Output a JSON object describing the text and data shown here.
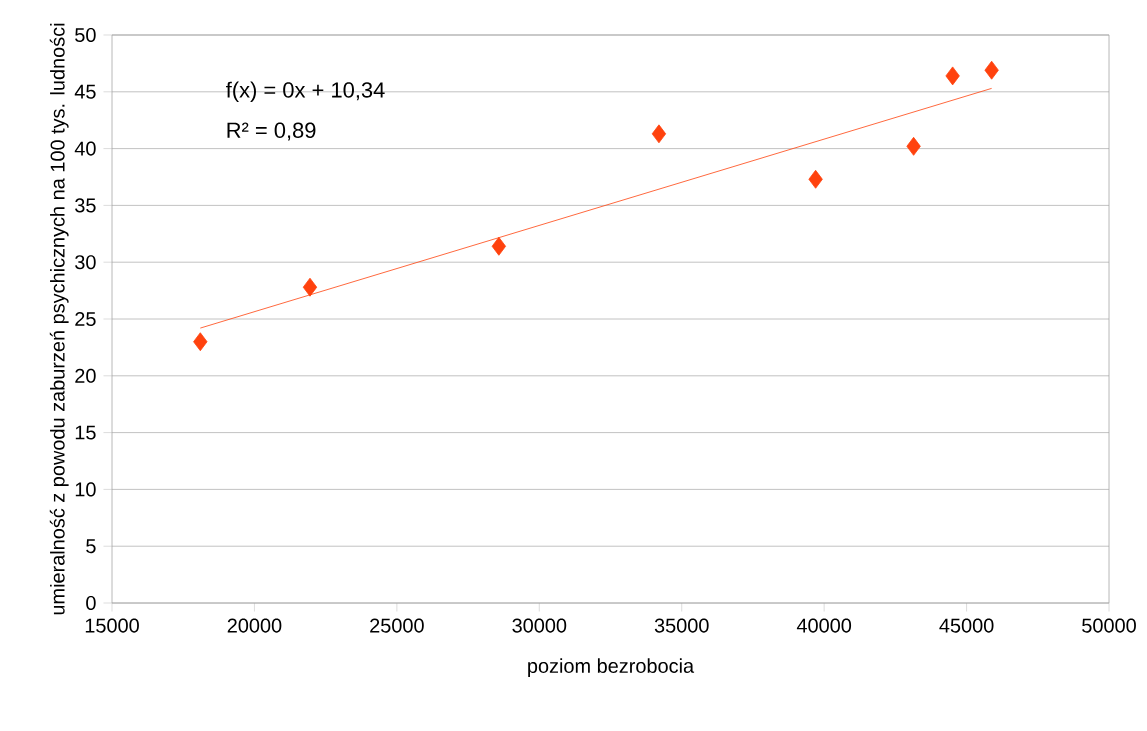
{
  "chart_data": {
    "type": "scatter",
    "xlabel": "poziom bezrobocia",
    "ylabel": "umieralność z powodu zaburzeń psychicznych na 100 tys. ludności",
    "annotations": [
      "f(x) = 0x + 10,34",
      "R² = 0,89"
    ],
    "series": [
      {
        "color": "#ff420e",
        "marker": "diamond",
        "x": [
          18100,
          21950,
          28580,
          34200,
          39700,
          43140,
          44510,
          45880
        ],
        "values": [
          23.0,
          27.8,
          31.4,
          41.3,
          37.3,
          40.2,
          46.4,
          46.9
        ]
      },
      {
        "type": "line",
        "color": "#ff420e",
        "marker": "none",
        "x": [
          18100,
          45880
        ],
        "values": [
          24.2,
          45.3
        ]
      }
    ],
    "xlim": [
      15000,
      50000
    ],
    "ylim": [
      0,
      50
    ],
    "xticks": [
      15000,
      20000,
      25000,
      30000,
      35000,
      40000,
      45000,
      50000
    ],
    "yticks": [
      0,
      5,
      10,
      15,
      20,
      25,
      30,
      35,
      40,
      45,
      50
    ],
    "grid": "y"
  }
}
